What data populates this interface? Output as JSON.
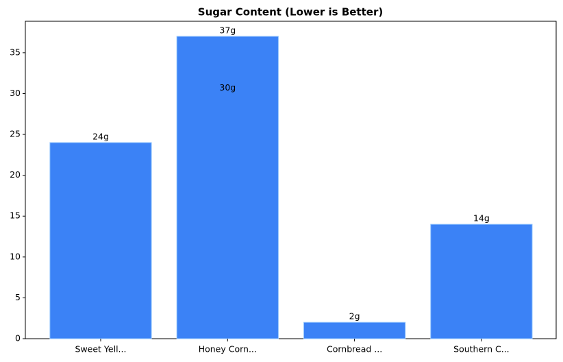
{
  "chart_data": {
    "type": "bar",
    "title": "Sugar Content (Lower is Better)",
    "categories": [
      "Sweet Yell...",
      "Honey Corn...",
      "Cornbread ...",
      "Southern C..."
    ],
    "values": [
      24,
      37,
      2,
      14
    ],
    "value_labels": [
      "24g",
      "37g",
      "2g",
      "14g"
    ],
    "color": "#3b82f6",
    "annotations": [
      {
        "text": "30g",
        "y": 30
      }
    ],
    "ylim": [
      0,
      38.85
    ],
    "yticks": [
      0,
      5,
      10,
      15,
      20,
      25,
      30,
      35
    ]
  }
}
